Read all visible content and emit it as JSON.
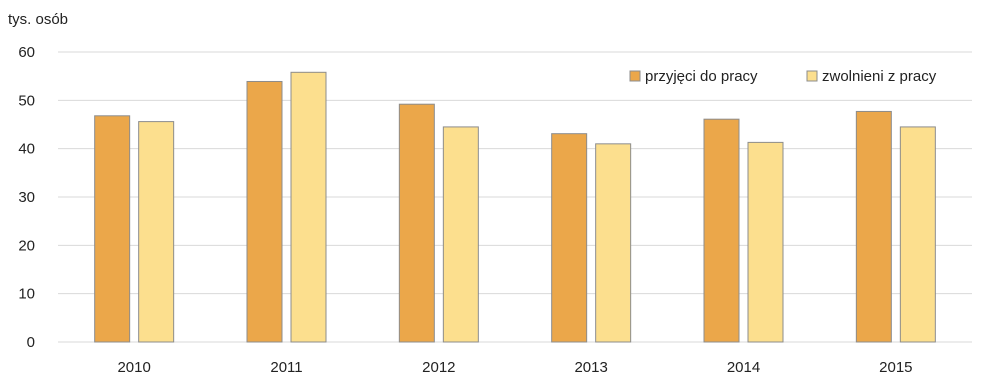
{
  "chart_data": {
    "type": "bar",
    "y_unit_label": "tys. osób",
    "categories": [
      "2010",
      "2011",
      "2012",
      "2013",
      "2014",
      "2015"
    ],
    "series": [
      {
        "name": "przyjęci do pracy",
        "color": "#EBA74A",
        "values": [
          46.8,
          53.9,
          49.2,
          43.1,
          46.1,
          47.7
        ]
      },
      {
        "name": "zwolnieni z pracy",
        "color": "#FCDF8E",
        "values": [
          45.6,
          55.8,
          44.5,
          41.0,
          41.3,
          44.5
        ]
      }
    ],
    "ylim": [
      0,
      60
    ],
    "yticks": [
      "0",
      "10",
      "20",
      "30",
      "40",
      "50",
      "60"
    ],
    "grid": true,
    "legend_position": "top-right",
    "colors": {
      "grid": "#D9D9D9",
      "bar_border": "#8C8C8C"
    }
  }
}
